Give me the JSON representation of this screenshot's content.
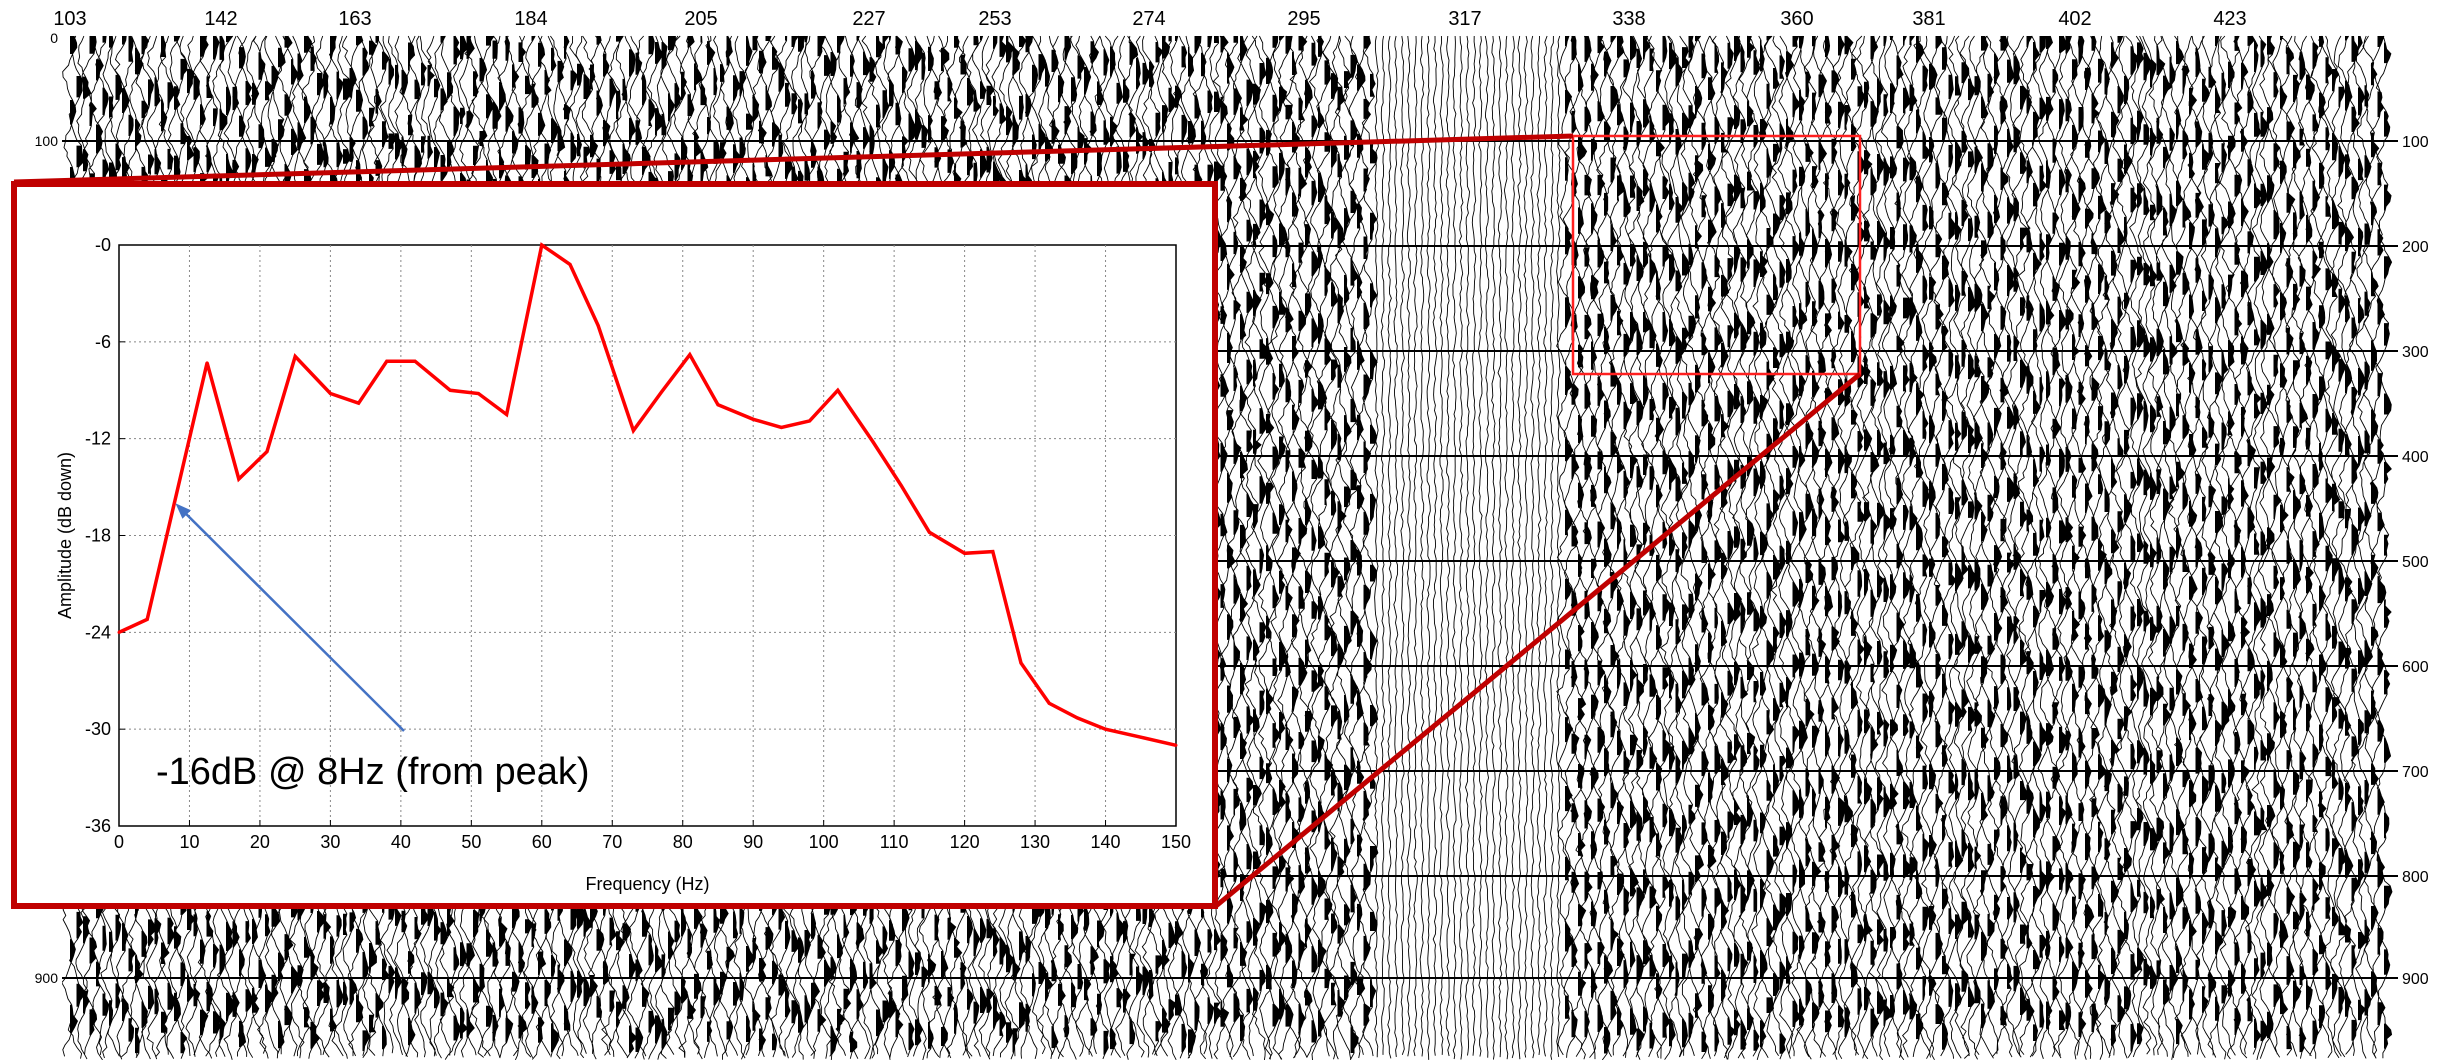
{
  "top_axis": {
    "labels": [
      "103",
      "142",
      "163",
      "184",
      "205",
      "227",
      "253",
      "274",
      "295",
      "317",
      "338",
      "360",
      "381",
      "402",
      "423"
    ]
  },
  "right_axis": {
    "labels": [
      "100",
      "200",
      "300",
      "400",
      "500",
      "600",
      "700",
      "800",
      "900"
    ]
  },
  "left_axis": {
    "labels": [
      "0",
      "100",
      "900"
    ]
  },
  "colors": {
    "inset_border": "#c00000",
    "spectrum_line": "#ff0000",
    "annotation_arrow": "#4472c4",
    "grid": "#888888",
    "traces": "#000000"
  },
  "annotation": {
    "text": "-16dB @ 8Hz (from peak)",
    "target": {
      "x": 8,
      "y": -16
    }
  },
  "chart_data": {
    "type": "line",
    "title": "",
    "xlabel": "Frequency (Hz)",
    "ylabel": "Amplitude (dB down)",
    "xlim": [
      0,
      150
    ],
    "ylim": [
      -36,
      0
    ],
    "xticks": [
      0,
      10,
      20,
      30,
      40,
      50,
      60,
      70,
      80,
      90,
      100,
      110,
      120,
      130,
      140,
      150
    ],
    "yticks": [
      0,
      -6,
      -12,
      -18,
      -24,
      -30,
      -36
    ],
    "ytick_labels": [
      "-0",
      "-6",
      "-12",
      "-18",
      "-24",
      "-30",
      "-36"
    ],
    "grid": true,
    "series": [
      {
        "color": "#ff0000",
        "x": [
          0,
          4,
          12.5,
          17,
          21,
          25,
          30,
          34,
          38,
          42,
          47,
          51,
          55,
          60,
          64,
          68,
          73,
          77,
          81,
          85,
          90,
          94,
          98,
          102,
          107,
          111,
          115,
          120,
          124,
          128,
          132,
          136,
          140,
          145,
          150
        ],
        "y": [
          -24,
          -23.2,
          -7.3,
          -14.5,
          -12.8,
          -6.9,
          -9.2,
          -9.8,
          -7.2,
          -7.2,
          -9,
          -9.2,
          -10.5,
          0,
          -1.2,
          -5,
          -11.5,
          -9.1,
          -6.8,
          -9.9,
          -10.8,
          -11.3,
          -10.9,
          -9,
          -12.2,
          -14.9,
          -17.8,
          -19.1,
          -19,
          -25.9,
          -28.4,
          -29.3,
          -30,
          -30.5,
          -31
        ]
      }
    ]
  }
}
